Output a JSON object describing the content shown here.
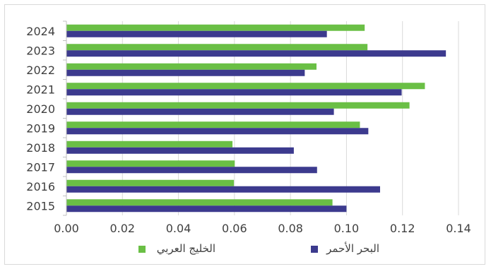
{
  "chart_data": {
    "type": "bar",
    "orientation": "horizontal",
    "title": "",
    "xlabel": "",
    "ylabel": "",
    "categories": [
      "2024",
      "2023",
      "2022",
      "2021",
      "2020",
      "2019",
      "2018",
      "2017",
      "2016",
      "2015"
    ],
    "series": [
      {
        "name": "الخليج العربي",
        "color": "#6abf45",
        "values": [
          0.1065,
          0.1075,
          0.0893,
          0.128,
          0.1225,
          0.1048,
          0.0593,
          0.0601,
          0.0598,
          0.095
        ]
      },
      {
        "name": "البحر الأحمر",
        "color": "#3c3a8e",
        "values": [
          0.093,
          0.1355,
          0.0851,
          0.1197,
          0.0955,
          0.1078,
          0.0812,
          0.0895,
          0.112,
          0.1
        ]
      }
    ],
    "xlim": [
      0,
      0.14
    ],
    "x_ticks": [
      "0.00",
      "0.02",
      "0.04",
      "0.06",
      "0.08",
      "0.10",
      "0.12",
      "0.14"
    ],
    "grid": true,
    "legend_position": "bottom"
  }
}
